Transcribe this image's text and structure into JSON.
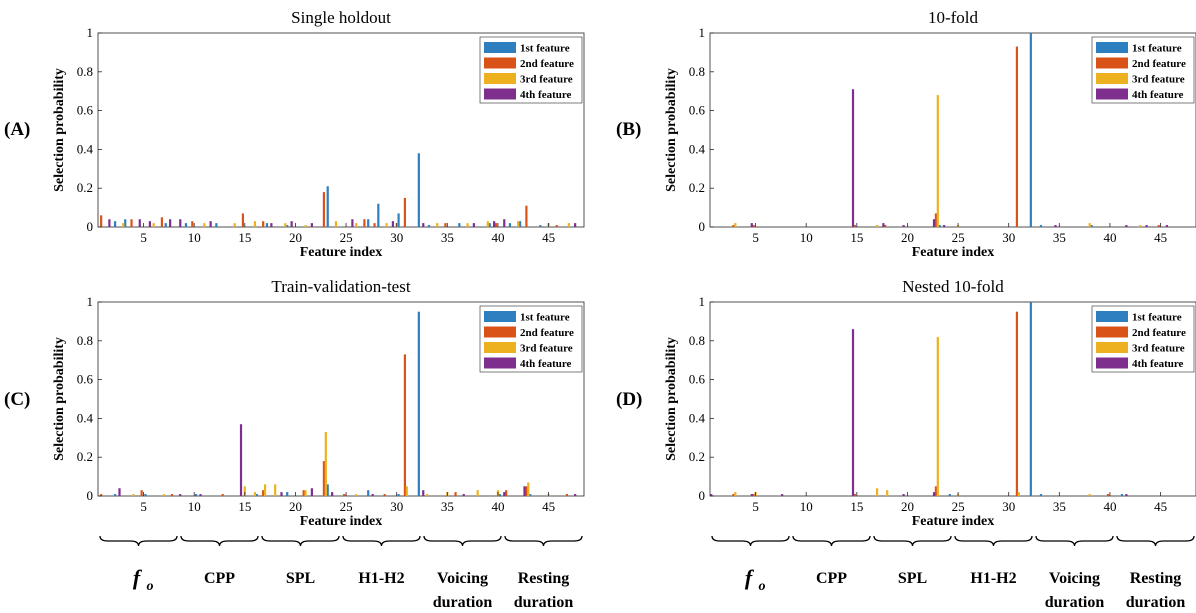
{
  "colors": {
    "s1": "#2d7fbf",
    "s2": "#d95319",
    "s3": "#edb120",
    "s4": "#7e2f8e"
  },
  "common": {
    "xlabel": "Feature index",
    "ylabel": "Selection probability",
    "xticks": [
      "5",
      "10",
      "15",
      "20",
      "25",
      "30",
      "35",
      "40",
      "45"
    ],
    "yticks": [
      "0",
      "0.2",
      "0.4",
      "0.6",
      "0.8",
      "1"
    ],
    "legend": [
      "1st feature",
      "2nd feature",
      "3rd feature",
      "4th feature"
    ]
  },
  "groups": {
    "fo_main": "f",
    "fo_sub": "o",
    "items": [
      "CPP",
      "SPL",
      "H1-H2",
      "Voicing",
      "Resting"
    ],
    "line2": [
      "duration",
      "duration"
    ]
  },
  "chart_data": [
    {
      "type": "bar",
      "panel": "(A)",
      "title": "Single holdout",
      "xlabel": "Feature index",
      "ylabel": "Selection probability",
      "xlim": [
        0.5,
        48.5
      ],
      "ylim": [
        0,
        1
      ],
      "legend_position": "top-right",
      "series": [
        {
          "name": "1st feature",
          "points": [
            [
              2,
              0.03
            ],
            [
              3,
              0.04
            ],
            [
              7,
              0.02
            ],
            [
              9,
              0.02
            ],
            [
              12,
              0.02
            ],
            [
              17,
              0.02
            ],
            [
              19,
              0.01
            ],
            [
              23,
              0.21
            ],
            [
              27,
              0.04
            ],
            [
              28,
              0.12
            ],
            [
              30,
              0.07
            ],
            [
              32,
              0.38
            ],
            [
              33,
              0.01
            ],
            [
              36,
              0.02
            ],
            [
              39,
              0.02
            ],
            [
              41,
              0.02
            ],
            [
              42,
              0.03
            ],
            [
              44,
              0.01
            ]
          ]
        },
        {
          "name": "2nd feature",
          "points": [
            [
              1,
              0.06
            ],
            [
              4,
              0.04
            ],
            [
              7,
              0.05
            ],
            [
              10,
              0.03
            ],
            [
              15,
              0.07
            ],
            [
              17,
              0.03
            ],
            [
              23,
              0.18
            ],
            [
              27,
              0.04
            ],
            [
              28,
              0.02
            ],
            [
              31,
              0.15
            ],
            [
              35,
              0.02
            ],
            [
              40,
              0.02
            ],
            [
              43,
              0.11
            ],
            [
              46,
              0.01
            ]
          ]
        },
        {
          "name": "3rd feature",
          "points": [
            [
              3,
              0.02
            ],
            [
              6,
              0.02
            ],
            [
              11,
              0.02
            ],
            [
              14,
              0.02
            ],
            [
              16,
              0.03
            ],
            [
              19,
              0.02
            ],
            [
              21,
              0.01
            ],
            [
              24,
              0.03
            ],
            [
              26,
              0.02
            ],
            [
              29,
              0.02
            ],
            [
              30,
              0.02
            ],
            [
              34,
              0.02
            ],
            [
              37,
              0.02
            ],
            [
              39,
              0.03
            ],
            [
              42,
              0.03
            ],
            [
              45,
              0.02
            ],
            [
              47,
              0.02
            ]
          ]
        },
        {
          "name": "4th feature",
          "points": [
            [
              2,
              0.04
            ],
            [
              5,
              0.04
            ],
            [
              6,
              0.03
            ],
            [
              8,
              0.04
            ],
            [
              9,
              0.04
            ],
            [
              12,
              0.03
            ],
            [
              18,
              0.02
            ],
            [
              20,
              0.03
            ],
            [
              22,
              0.02
            ],
            [
              26,
              0.04
            ],
            [
              30,
              0.03
            ],
            [
              33,
              0.02
            ],
            [
              38,
              0.02
            ],
            [
              40,
              0.03
            ],
            [
              41,
              0.04
            ],
            [
              48,
              0.02
            ]
          ]
        }
      ]
    },
    {
      "type": "bar",
      "panel": "(B)",
      "title": "10-fold",
      "xlabel": "Feature index",
      "ylabel": "Selection probability",
      "xlim": [
        0.5,
        48.5
      ],
      "ylim": [
        0,
        1
      ],
      "legend_position": "top-right",
      "series": [
        {
          "name": "1st feature",
          "points": [
            [
              23,
              0.01
            ],
            [
              32,
              1.0
            ],
            [
              33,
              0.01
            ],
            [
              38,
              0.01
            ]
          ]
        },
        {
          "name": "2nd feature",
          "points": [
            [
              3,
              0.01
            ],
            [
              5,
              0.01
            ],
            [
              15,
              0.01
            ],
            [
              18,
              0.01
            ],
            [
              23,
              0.07
            ],
            [
              31,
              0.93
            ],
            [
              45,
              0.01
            ]
          ]
        },
        {
          "name": "3rd feature",
          "points": [
            [
              3,
              0.02
            ],
            [
              17,
              0.01
            ],
            [
              23,
              0.68
            ],
            [
              25,
              0.01
            ],
            [
              38,
              0.02
            ],
            [
              43,
              0.01
            ]
          ]
        },
        {
          "name": "4th feature",
          "points": [
            [
              5,
              0.02
            ],
            [
              15,
              0.71
            ],
            [
              18,
              0.02
            ],
            [
              20,
              0.01
            ],
            [
              23,
              0.04
            ],
            [
              24,
              0.01
            ],
            [
              35,
              0.01
            ],
            [
              42,
              0.01
            ],
            [
              44,
              0.01
            ],
            [
              46,
              0.01
            ]
          ]
        }
      ]
    },
    {
      "type": "bar",
      "panel": "(C)",
      "title": "Train-validation-test",
      "xlabel": "Feature index",
      "ylabel": "Selection probability",
      "xlim": [
        0.5,
        48.5
      ],
      "ylim": [
        0,
        1
      ],
      "legend_position": "top-right",
      "series": [
        {
          "name": "1st feature",
          "points": [
            [
              2,
              0.01
            ],
            [
              5,
              0.01
            ],
            [
              10,
              0.01
            ],
            [
              16,
              0.01
            ],
            [
              19,
              0.02
            ],
            [
              23,
              0.06
            ],
            [
              27,
              0.03
            ],
            [
              30,
              0.01
            ],
            [
              32,
              0.95
            ],
            [
              40,
              0.01
            ],
            [
              43,
              0.01
            ]
          ]
        },
        {
          "name": "2nd feature",
          "points": [
            [
              1,
              0.01
            ],
            [
              5,
              0.03
            ],
            [
              8,
              0.01
            ],
            [
              13,
              0.01
            ],
            [
              17,
              0.03
            ],
            [
              21,
              0.03
            ],
            [
              23,
              0.18
            ],
            [
              25,
              0.01
            ],
            [
              29,
              0.01
            ],
            [
              31,
              0.73
            ],
            [
              36,
              0.02
            ],
            [
              41,
              0.03
            ],
            [
              43,
              0.05
            ],
            [
              47,
              0.01
            ]
          ]
        },
        {
          "name": "3rd feature",
          "points": [
            [
              4,
              0.01
            ],
            [
              7,
              0.01
            ],
            [
              15,
              0.05
            ],
            [
              16,
              0.02
            ],
            [
              17,
              0.06
            ],
            [
              18,
              0.06
            ],
            [
              21,
              0.03
            ],
            [
              23,
              0.33
            ],
            [
              26,
              0.01
            ],
            [
              31,
              0.05
            ],
            [
              33,
              0.01
            ],
            [
              35,
              0.02
            ],
            [
              38,
              0.03
            ],
            [
              40,
              0.03
            ],
            [
              43,
              0.07
            ],
            [
              45,
              0.01
            ]
          ]
        },
        {
          "name": "4th feature",
          "points": [
            [
              3,
              0.04
            ],
            [
              9,
              0.01
            ],
            [
              11,
              0.01
            ],
            [
              15,
              0.37
            ],
            [
              19,
              0.02
            ],
            [
              22,
              0.04
            ],
            [
              24,
              0.02
            ],
            [
              28,
              0.01
            ],
            [
              33,
              0.03
            ],
            [
              37,
              0.01
            ],
            [
              41,
              0.02
            ],
            [
              43,
              0.05
            ],
            [
              48,
              0.01
            ]
          ]
        }
      ]
    },
    {
      "type": "bar",
      "panel": "(D)",
      "title": "Nested 10-fold",
      "xlabel": "Feature index",
      "ylabel": "Selection probability",
      "xlim": [
        0.5,
        48.5
      ],
      "ylim": [
        0,
        1
      ],
      "legend_position": "top-right",
      "series": [
        {
          "name": "1st feature",
          "points": [
            [
              24,
              0.01
            ],
            [
              32,
              1.0
            ],
            [
              33,
              0.01
            ],
            [
              41,
              0.01
            ]
          ]
        },
        {
          "name": "2nd feature",
          "points": [
            [
              3,
              0.01
            ],
            [
              5,
              0.01
            ],
            [
              15,
              0.01
            ],
            [
              23,
              0.05
            ],
            [
              31,
              0.95
            ],
            [
              40,
              0.01
            ]
          ]
        },
        {
          "name": "3rd feature",
          "points": [
            [
              3,
              0.02
            ],
            [
              5,
              0.02
            ],
            [
              17,
              0.04
            ],
            [
              18,
              0.03
            ],
            [
              23,
              0.82
            ],
            [
              25,
              0.01
            ],
            [
              31,
              0.02
            ],
            [
              38,
              0.01
            ]
          ]
        },
        {
          "name": "4th feature",
          "points": [
            [
              1,
              0.01
            ],
            [
              5,
              0.01
            ],
            [
              8,
              0.01
            ],
            [
              15,
              0.86
            ],
            [
              20,
              0.01
            ],
            [
              23,
              0.02
            ],
            [
              42,
              0.01
            ]
          ]
        }
      ]
    }
  ]
}
